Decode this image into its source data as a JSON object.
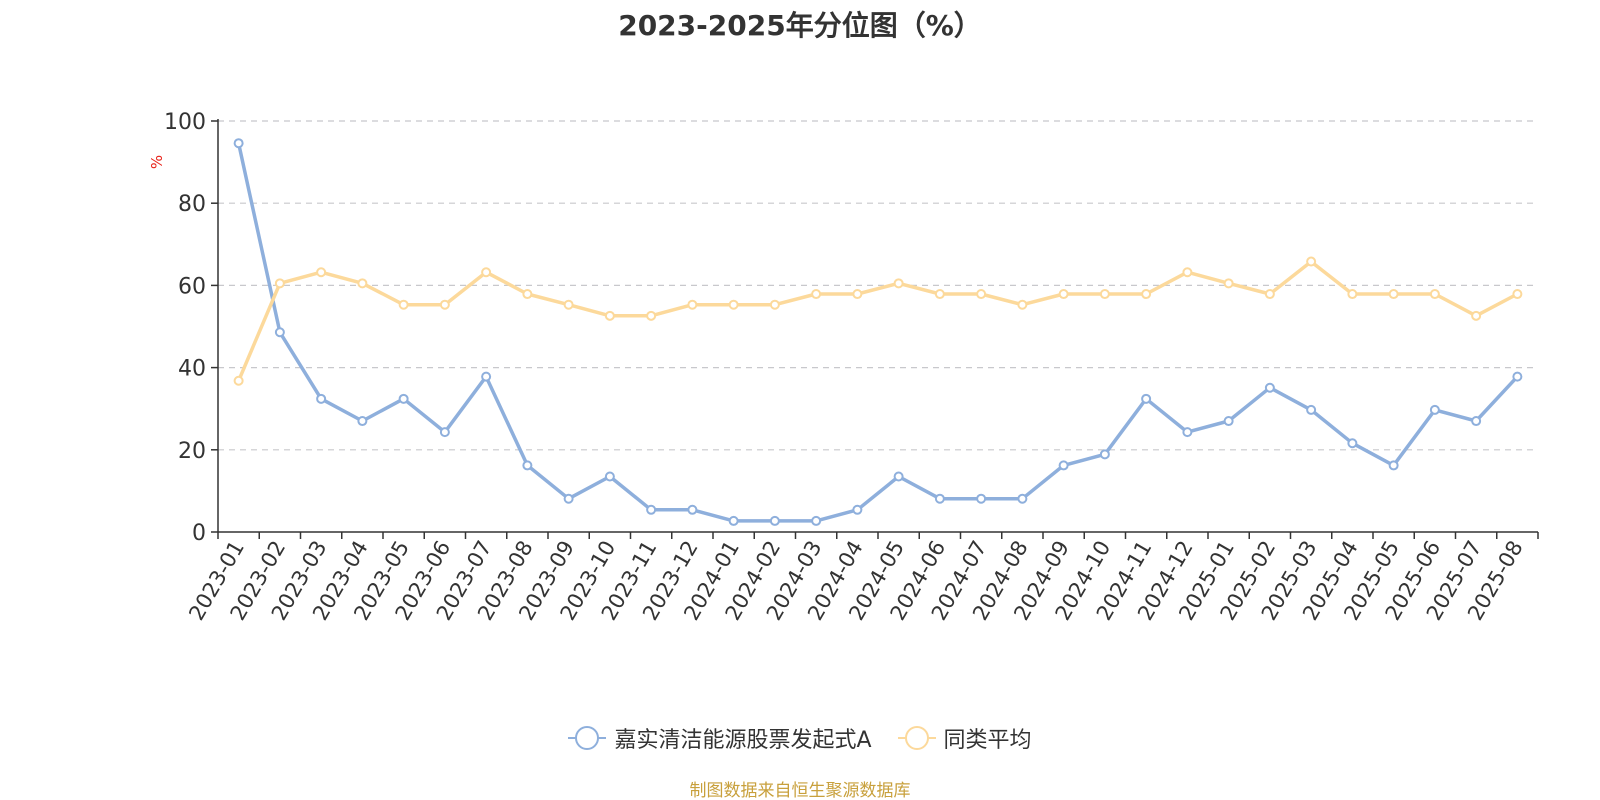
{
  "chart_data": {
    "type": "line",
    "title": "2023-2025年分位图（%）",
    "ylabel": "%",
    "ylim": [
      0,
      100
    ],
    "yticks": [
      0,
      20,
      40,
      60,
      80,
      100
    ],
    "grid": true,
    "legend_position": "bottom",
    "categories": [
      "2023-01",
      "2023-02",
      "2023-03",
      "2023-04",
      "2023-05",
      "2023-06",
      "2023-07",
      "2023-08",
      "2023-09",
      "2023-10",
      "2023-11",
      "2023-12",
      "2024-01",
      "2024-02",
      "2024-03",
      "2024-04",
      "2024-05",
      "2024-06",
      "2024-07",
      "2024-08",
      "2024-09",
      "2024-10",
      "2024-11",
      "2024-12",
      "2025-01",
      "2025-02",
      "2025-03",
      "2025-04",
      "2025-05",
      "2025-06",
      "2025-07",
      "2025-08"
    ],
    "series": [
      {
        "name": "嘉实清洁能源股票发起式A",
        "color": "#8eafdc",
        "values": [
          94.6,
          48.6,
          32.4,
          27.0,
          32.4,
          24.3,
          37.8,
          16.2,
          8.1,
          13.5,
          5.4,
          5.4,
          2.7,
          2.7,
          2.7,
          5.4,
          13.5,
          8.1,
          8.1,
          8.1,
          16.2,
          18.9,
          32.4,
          24.3,
          27.0,
          35.1,
          29.7,
          21.6,
          16.2,
          29.7,
          27.0,
          37.8
        ]
      },
      {
        "name": "同类平均",
        "color": "#fcd99b",
        "values": [
          36.8,
          60.5,
          63.2,
          60.5,
          55.3,
          55.3,
          63.2,
          57.9,
          55.3,
          52.6,
          52.6,
          55.3,
          55.3,
          55.3,
          57.9,
          57.9,
          60.5,
          57.9,
          57.9,
          55.3,
          57.9,
          57.9,
          57.9,
          63.2,
          60.5,
          57.9,
          65.8,
          57.9,
          57.9,
          57.9,
          52.6,
          57.9
        ]
      }
    ]
  },
  "source_note": "制图数据来自恒生聚源数据库",
  "colors": {
    "axis": "#333333",
    "grid": "#c8c8cc",
    "ylabel": "#e8231a"
  }
}
